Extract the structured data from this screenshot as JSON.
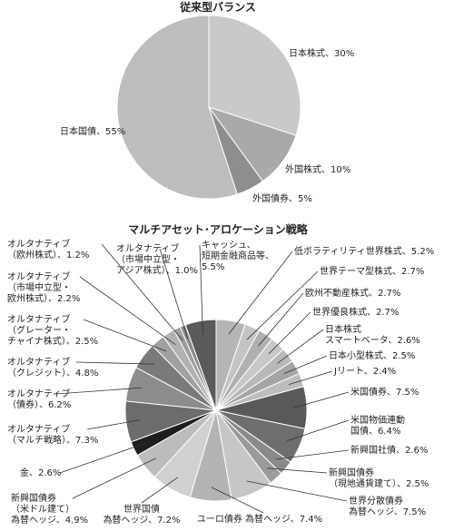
{
  "chart_data": [
    {
      "type": "pie",
      "title": "従来型バランス",
      "categories": [
        "日本株式、30%",
        "外国株式、10%",
        "外国債券、5%",
        "日本国債、55%"
      ],
      "values": [
        30,
        10,
        5,
        55
      ],
      "colors": [
        "#c9c9c9",
        "#a9a9a9",
        "#8e8e8e",
        "#bdbdbd"
      ]
    },
    {
      "type": "pie",
      "title": "マルチアセット･アロケーション戦略",
      "categories": [
        "低ボラティリティ世界株式、5.2%",
        "世界テーマ型株式、2.7%",
        "欧州不動産株式、2.7%",
        "世界優良株式、2.7%",
        "日本株式\nスマートベータ、2.6%",
        "日本小型株式、2.5%",
        "Jリート、2.4%",
        "米国債券、7.5%",
        "米国物価連動\n国債、6.4%",
        "新興国社債、2.6%",
        "新興国債券\n（現地通貨建て）、2.5%",
        "世界分散債券\n為替ヘッジ、7.5%",
        "ユーロ債券 為替ヘッジ、7.4%",
        "世界国債\n為替ヘッジ、7.2%",
        "新興国債券\n（米ドル建て）\n為替ヘッジ、4.9%",
        "金、2.6%",
        "オルタナティブ\n（マルチ戦略）、7.3%",
        "オルタナティブ\n（債券）、6.2%",
        "オルタナティブ\n（クレジット）、4.8%",
        "オルタナティブ\n（グレーター・\nチャイナ株式）、2.5%",
        "オルタナティブ\n（市場中立型・\n欧州株式）、2.2%",
        "オルタナティブ\n（欧州株式）、1.2%",
        "オルタナティブ\n（市場中立型・\nアジア株式）、1.0%",
        "キャッシュ、\n短期金融商品等、\n5.5%"
      ],
      "values": [
        5.2,
        2.7,
        2.7,
        2.7,
        2.6,
        2.5,
        2.4,
        7.5,
        6.4,
        2.6,
        2.5,
        7.5,
        7.4,
        7.2,
        4.9,
        2.6,
        7.3,
        6.2,
        4.8,
        2.5,
        2.2,
        1.2,
        1.0,
        5.5
      ],
      "colors": [
        "#b5b5b5",
        "#c4c4c4",
        "#b0b0b0",
        "#c8c8c8",
        "#b8b8b8",
        "#a5a5a5",
        "#bdbdbd",
        "#595959",
        "#6e6e6e",
        "#8a8a8a",
        "#9a9a9a",
        "#c6c6c6",
        "#b4b4b4",
        "#d0d0d0",
        "#bcbcbc",
        "#1e1e1e",
        "#6c6c6c",
        "#8c8c8c",
        "#7a7a7a",
        "#a0a0a0",
        "#b2b2b2",
        "#9e9e9e",
        "#8a8a8a",
        "#5a5a5a"
      ]
    }
  ]
}
